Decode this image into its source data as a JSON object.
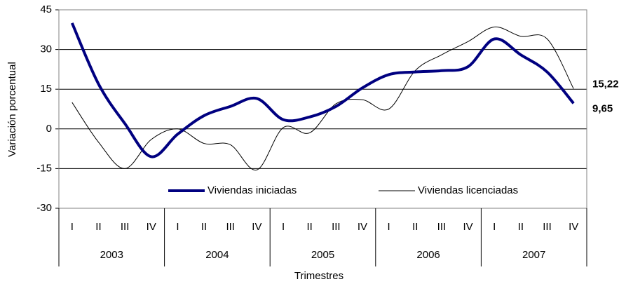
{
  "chart_data": {
    "type": "line",
    "y_label": "Variación porcentual",
    "x_label": "Trimestres",
    "categories": [
      "I",
      "II",
      "III",
      "IV",
      "I",
      "II",
      "III",
      "IV",
      "I",
      "II",
      "III",
      "IV",
      "I",
      "II",
      "III",
      "IV",
      "I",
      "II",
      "III",
      "IV"
    ],
    "years": [
      "2003",
      "2004",
      "2005",
      "2006",
      "2007"
    ],
    "series": [
      {
        "name": "Viviendas iniciadas",
        "color": "#000080",
        "width": 4,
        "values": [
          40,
          17,
          2,
          -10.5,
          -2,
          5,
          8.5,
          11.5,
          3.5,
          4.5,
          8.5,
          15.5,
          20.5,
          21.5,
          22,
          23.5,
          34,
          28,
          21.5,
          9.65
        ],
        "value_labels": [
          null,
          null,
          null,
          null,
          null,
          null,
          null,
          null,
          null,
          null,
          null,
          null,
          null,
          null,
          null,
          null,
          null,
          null,
          null,
          "9,65"
        ]
      },
      {
        "name": "Viviendas licenciadas",
        "color": "#000000",
        "width": 1,
        "values": [
          10,
          -5,
          -15,
          -4,
          0,
          -5.5,
          -6,
          -15.5,
          0.5,
          -1.5,
          9.5,
          11,
          7.5,
          22,
          28,
          33,
          38.5,
          35,
          34,
          15.22
        ],
        "value_labels": [
          null,
          null,
          null,
          null,
          null,
          null,
          null,
          null,
          null,
          null,
          null,
          null,
          null,
          null,
          null,
          null,
          null,
          null,
          null,
          "15,22"
        ]
      }
    ],
    "ylim": [
      -30,
      45
    ],
    "yticks": [
      -30,
      -15,
      0,
      15,
      30,
      45
    ],
    "grid": true
  }
}
